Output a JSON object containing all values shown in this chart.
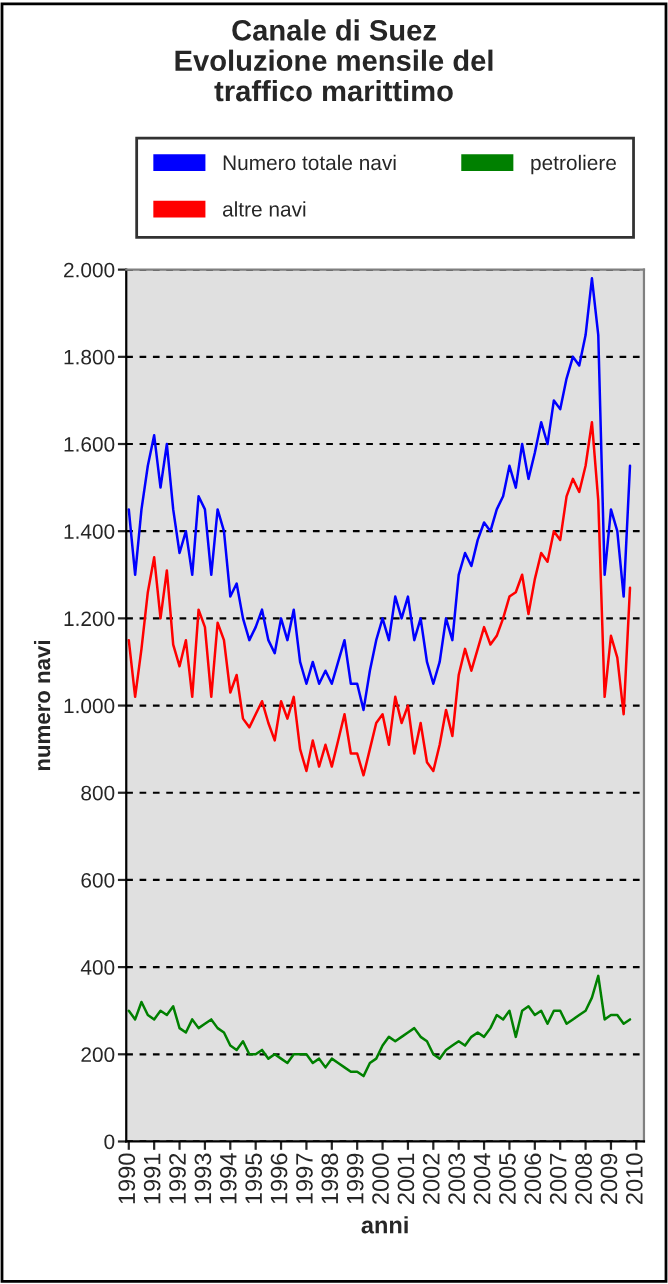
{
  "chart_data": {
    "type": "line",
    "title": "Canale di Suez\nEvoluzione mensile del\ntraffico marittimo",
    "xlabel": "anni",
    "ylabel": "numero navi",
    "x": [
      1990.0,
      1990.25,
      1990.5,
      1990.75,
      1991.0,
      1991.25,
      1991.5,
      1991.75,
      1992.0,
      1992.25,
      1992.5,
      1992.75,
      1993.0,
      1993.25,
      1993.5,
      1993.75,
      1994.0,
      1994.25,
      1994.5,
      1994.75,
      1995.0,
      1995.25,
      1995.5,
      1995.75,
      1996.0,
      1996.25,
      1996.5,
      1996.75,
      1997.0,
      1997.25,
      1997.5,
      1997.75,
      1998.0,
      1998.25,
      1998.5,
      1998.75,
      1999.0,
      1999.25,
      1999.5,
      1999.75,
      2000.0,
      2000.25,
      2000.5,
      2000.75,
      2001.0,
      2001.25,
      2001.5,
      2001.75,
      2002.0,
      2002.25,
      2002.5,
      2002.75,
      2003.0,
      2003.25,
      2003.5,
      2003.75,
      2004.0,
      2004.25,
      2004.5,
      2004.75,
      2005.0,
      2005.25,
      2005.5,
      2005.75,
      2006.0,
      2006.25,
      2006.5,
      2006.75,
      2007.0,
      2007.25,
      2007.5,
      2007.75,
      2008.0,
      2008.25,
      2008.5,
      2008.75,
      2009.0,
      2009.25,
      2009.5,
      2009.75
    ],
    "series": [
      {
        "name": "Numero totale navi",
        "color": "#0000ff",
        "values": [
          1450,
          1300,
          1450,
          1550,
          1620,
          1500,
          1600,
          1450,
          1350,
          1400,
          1300,
          1480,
          1450,
          1300,
          1450,
          1400,
          1250,
          1280,
          1200,
          1150,
          1180,
          1220,
          1150,
          1120,
          1200,
          1150,
          1220,
          1100,
          1050,
          1100,
          1050,
          1080,
          1050,
          1100,
          1150,
          1050,
          1050,
          990,
          1080,
          1150,
          1200,
          1150,
          1250,
          1200,
          1250,
          1150,
          1200,
          1100,
          1050,
          1100,
          1200,
          1150,
          1300,
          1350,
          1320,
          1380,
          1420,
          1400,
          1450,
          1480,
          1550,
          1500,
          1600,
          1520,
          1580,
          1650,
          1600,
          1700,
          1680,
          1750,
          1800,
          1780,
          1850,
          1980,
          1850,
          1300,
          1450,
          1400,
          1250,
          1550
        ]
      },
      {
        "name": "petroliere",
        "color": "#008000",
        "values": [
          300,
          280,
          320,
          290,
          280,
          300,
          290,
          310,
          260,
          250,
          280,
          260,
          270,
          280,
          260,
          250,
          220,
          210,
          230,
          200,
          200,
          210,
          190,
          200,
          190,
          180,
          200,
          200,
          200,
          180,
          190,
          170,
          190,
          180,
          170,
          160,
          160,
          150,
          180,
          190,
          220,
          240,
          230,
          240,
          250,
          260,
          240,
          230,
          200,
          190,
          210,
          220,
          230,
          220,
          240,
          250,
          240,
          260,
          290,
          280,
          300,
          240,
          300,
          310,
          290,
          300,
          270,
          300,
          300,
          270,
          280,
          290,
          300,
          330,
          380,
          280,
          290,
          290,
          270,
          280
        ]
      },
      {
        "name": "altre navi",
        "color": "#ff0000",
        "values": [
          1150,
          1020,
          1130,
          1260,
          1340,
          1200,
          1310,
          1140,
          1090,
          1150,
          1020,
          1220,
          1180,
          1020,
          1190,
          1150,
          1030,
          1070,
          970,
          950,
          980,
          1010,
          960,
          920,
          1010,
          970,
          1020,
          900,
          850,
          920,
          860,
          910,
          860,
          920,
          980,
          890,
          890,
          840,
          900,
          960,
          980,
          910,
          1020,
          960,
          1000,
          890,
          960,
          870,
          850,
          910,
          990,
          930,
          1070,
          1130,
          1080,
          1130,
          1180,
          1140,
          1160,
          1200,
          1250,
          1260,
          1300,
          1210,
          1290,
          1350,
          1330,
          1400,
          1380,
          1480,
          1520,
          1490,
          1550,
          1650,
          1470,
          1020,
          1160,
          1110,
          980,
          1270
        ]
      }
    ],
    "xlim": [
      1989.9,
      2010.3
    ],
    "xticks": [
      1990,
      1991,
      1992,
      1993,
      1994,
      1995,
      1996,
      1997,
      1998,
      1999,
      2000,
      2001,
      2002,
      2003,
      2004,
      2005,
      2006,
      2007,
      2008,
      2009,
      2010
    ],
    "ylim": [
      0,
      2000
    ],
    "yticks": [
      {
        "value": 0,
        "label": "0"
      },
      {
        "value": 200,
        "label": "200"
      },
      {
        "value": 400,
        "label": "400"
      },
      {
        "value": 600,
        "label": "600"
      },
      {
        "value": 800,
        "label": "800"
      },
      {
        "value": 1000,
        "label": "1.000"
      },
      {
        "value": 1200,
        "label": "1.200"
      },
      {
        "value": 1400,
        "label": "1.400"
      },
      {
        "value": 1600,
        "label": "1.600"
      },
      {
        "value": 1800,
        "label": "1.800"
      },
      {
        "value": 2000,
        "label": "2.000"
      }
    ],
    "grid": "y",
    "legend": "top",
    "marker": "none",
    "line_style": "solid"
  }
}
